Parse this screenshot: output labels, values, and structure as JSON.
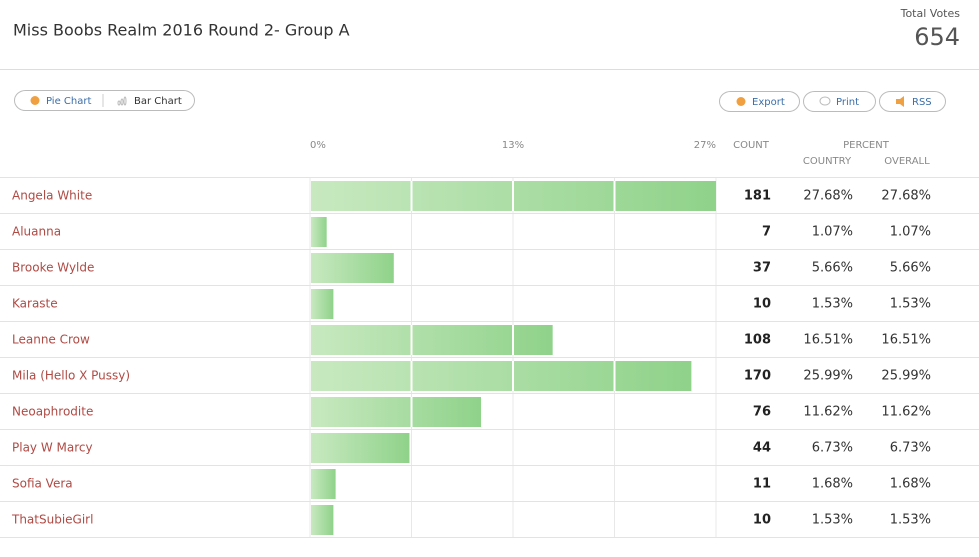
{
  "header": {
    "title": "Miss Boobs Realm 2016 Round 2- Group A",
    "total_label": "Total Votes",
    "total_value": "654"
  },
  "toolbar": {
    "left": [
      "Pie Chart",
      "Bar Chart"
    ],
    "right": [
      "Export",
      "Print",
      "RSS"
    ]
  },
  "table": {
    "axis_labels": [
      "0%",
      "13%",
      "27%"
    ],
    "columns": {
      "count": "COUNT",
      "percent": "PERCENT",
      "country": "COUNTRY",
      "overall": "OVERALL"
    },
    "rows": [
      {
        "name": "Angela White",
        "count": 181,
        "country": "27.68%",
        "overall": "27.68%"
      },
      {
        "name": "Aluanna",
        "count": 7,
        "country": "1.07%",
        "overall": "1.07%"
      },
      {
        "name": "Brooke Wylde",
        "count": 37,
        "country": "5.66%",
        "overall": "5.66%"
      },
      {
        "name": "Karaste",
        "count": 10,
        "country": "1.53%",
        "overall": "1.53%"
      },
      {
        "name": "Leanne Crow",
        "count": 108,
        "country": "16.51%",
        "overall": "16.51%"
      },
      {
        "name": "Mila (Hello X Pussy)",
        "count": 170,
        "country": "25.99%",
        "overall": "25.99%"
      },
      {
        "name": "Neoaphrodite",
        "count": 76,
        "country": "11.62%",
        "overall": "11.62%"
      },
      {
        "name": "Play W Marcy",
        "count": 44,
        "country": "6.73%",
        "overall": "6.73%"
      },
      {
        "name": "Sofia Vera",
        "count": 11,
        "country": "1.68%",
        "overall": "1.68%"
      },
      {
        "name": "ThatSubieGirl",
        "count": 10,
        "country": "1.53%",
        "overall": "1.53%"
      }
    ]
  }
}
